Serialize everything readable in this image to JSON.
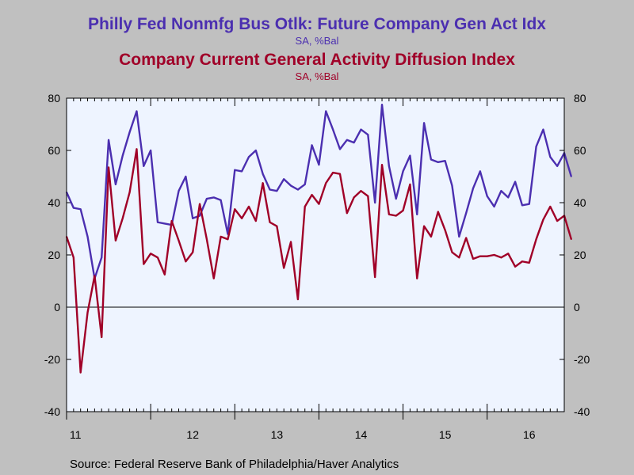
{
  "chart_data": {
    "type": "line",
    "title": "Philly Fed Nonmfg Bus Otlk: Future Company Gen Act Idx",
    "subtitle": "SA, %Bal",
    "title2": "Company Current General Activity Diffusion Index",
    "subtitle2": "SA, %Bal",
    "source": "Source:  Federal Reserve Bank of Philadelphia/Haver Analytics",
    "ylim": [
      -40,
      80
    ],
    "y_ticks": [
      "80",
      "60",
      "40",
      "20",
      "0",
      "-20",
      "-40"
    ],
    "y_tick_values": [
      80,
      60,
      40,
      20,
      0,
      -20,
      -40
    ],
    "x_tick_labels": [
      "11",
      "12",
      "13",
      "14",
      "15",
      "16"
    ],
    "x_range_months": [
      0,
      71
    ],
    "grid": false,
    "zero_line": true,
    "background_color": "#EEF4FF",
    "series": [
      {
        "color": "#4B2FB0",
        "values": [
          44,
          38,
          37.5,
          27,
          11,
          19,
          64,
          47,
          58,
          67,
          75,
          54,
          60,
          32.5,
          32,
          31.5,
          44.5,
          50,
          34,
          35,
          41.5,
          42,
          41,
          28,
          52.5,
          52,
          57.5,
          60,
          51,
          45,
          44.5,
          49,
          46.5,
          45,
          47,
          62,
          54.5,
          75,
          68,
          60.5,
          64,
          63,
          68,
          66,
          40,
          77.5,
          54,
          41.5,
          52,
          58,
          35.5,
          70.5,
          56.5,
          55.5,
          56,
          46.5,
          27,
          36,
          45.5,
          52,
          42.5,
          38.5,
          44.5,
          42,
          48,
          39,
          39.5,
          61.5,
          68,
          57.5,
          54,
          59,
          50
        ]
      },
      {
        "color": "#A00028",
        "values": [
          27,
          19,
          -25,
          -2,
          12,
          -11.5,
          53.5,
          25.5,
          34,
          44,
          60.5,
          16.5,
          20.5,
          19,
          12.5,
          33,
          25.5,
          17.5,
          21,
          39.5,
          26,
          11,
          27,
          26,
          37.5,
          34,
          38.5,
          33,
          47.5,
          32.5,
          31,
          15,
          25,
          3,
          38.5,
          43,
          39.5,
          47.5,
          51.5,
          51,
          36,
          42,
          44.5,
          42.5,
          11.5,
          54.5,
          35.5,
          35,
          37,
          47,
          11,
          31,
          27,
          36.5,
          29.5,
          21,
          19,
          26.5,
          18.5,
          19.5,
          19.5,
          20,
          19,
          20.5,
          15.5,
          17.5,
          17,
          26,
          33.5,
          38.5,
          33,
          35,
          26
        ]
      }
    ]
  }
}
